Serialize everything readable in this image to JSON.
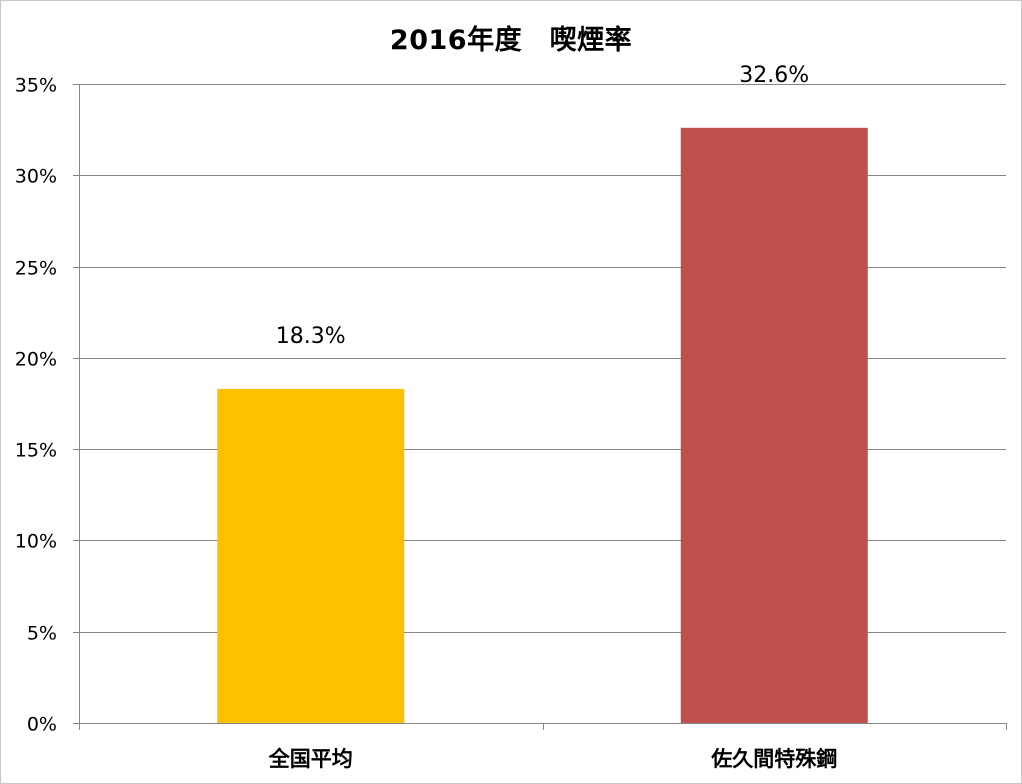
{
  "chart_data": {
    "type": "bar",
    "title": "2016年度　喫煙率",
    "xlabel": "",
    "ylabel": "",
    "categories": [
      "全国平均",
      "佐久間特殊鋼"
    ],
    "values": [
      18.3,
      32.6
    ],
    "data_labels": [
      "18.3%",
      "32.6%"
    ],
    "ylim": [
      0,
      35
    ],
    "yticks": [
      0,
      5,
      10,
      15,
      20,
      25,
      30,
      35
    ],
    "ytick_labels": [
      "0%",
      "5%",
      "10%",
      "15%",
      "20%",
      "25%",
      "30%",
      "35%"
    ],
    "grid": true,
    "legend": "none",
    "bar_colors": [
      "#ffc000",
      "#c0504d"
    ]
  },
  "colors": {
    "gridline": "#868686",
    "axis": "#868686"
  }
}
